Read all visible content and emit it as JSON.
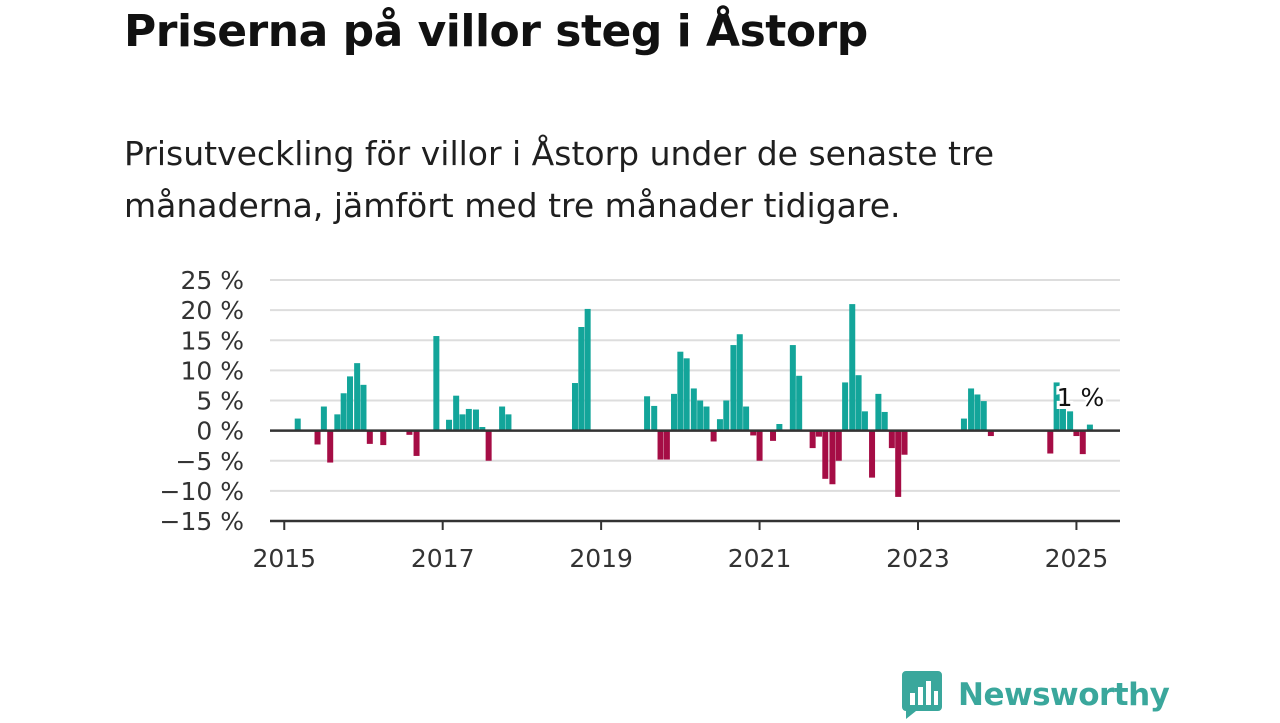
{
  "title": "Priserna på villor steg i Åstorp",
  "subtitle": "Prisutveckling för villor i Åstorp under de senaste tre månaderna, jämfört med tre månader tidigare.",
  "brand": {
    "name": "Newsworthy",
    "color": "#3aa79c",
    "icon": "speech-bubble-bar-chart-icon"
  },
  "colors": {
    "positive": "#13a59a",
    "negative": "#a50d45",
    "grid": "#dddddd",
    "axis": "#333333"
  },
  "chart_data": {
    "type": "bar",
    "title": "Priserna på villor steg i Åstorp",
    "xlabel": "",
    "ylabel": "",
    "unit": "%",
    "ylim": [
      -15,
      25
    ],
    "xlim": [
      2014.82,
      2025.55
    ],
    "grid": true,
    "legend": "none",
    "y_ticks": [
      25,
      20,
      15,
      10,
      5,
      0,
      -5,
      -10,
      -15
    ],
    "y_tick_labels": [
      "25 %",
      "20 %",
      "15 %",
      "10 %",
      "5 %",
      "0 %",
      "−5 %",
      "−10 %",
      "−15 %"
    ],
    "x_ticks": [
      2015,
      2017,
      2019,
      2021,
      2023,
      2025
    ],
    "x_tick_labels": [
      "2015",
      "2017",
      "2019",
      "2021",
      "2023",
      "2025"
    ],
    "value_label": {
      "text": "1 %",
      "x": 2025.0
    },
    "points": [
      {
        "x": 2015.17,
        "y": 2
      },
      {
        "x": 2015.42,
        "y": -2.3
      },
      {
        "x": 2015.5,
        "y": 4
      },
      {
        "x": 2015.58,
        "y": -5.3
      },
      {
        "x": 2015.67,
        "y": 2.7
      },
      {
        "x": 2015.75,
        "y": 6.2
      },
      {
        "x": 2015.83,
        "y": 9
      },
      {
        "x": 2015.92,
        "y": 11.2
      },
      {
        "x": 2016.0,
        "y": 7.6
      },
      {
        "x": 2016.08,
        "y": -2.2
      },
      {
        "x": 2016.25,
        "y": -2.4
      },
      {
        "x": 2016.58,
        "y": -0.7
      },
      {
        "x": 2016.67,
        "y": -4.2
      },
      {
        "x": 2016.92,
        "y": 15.7
      },
      {
        "x": 2017.08,
        "y": 1.8
      },
      {
        "x": 2017.17,
        "y": 5.8
      },
      {
        "x": 2017.25,
        "y": 2.7
      },
      {
        "x": 2017.33,
        "y": 3.6
      },
      {
        "x": 2017.42,
        "y": 3.5
      },
      {
        "x": 2017.5,
        "y": 0.6
      },
      {
        "x": 2017.58,
        "y": -5
      },
      {
        "x": 2017.75,
        "y": 4
      },
      {
        "x": 2017.83,
        "y": 2.7
      },
      {
        "x": 2018.67,
        "y": 7.9
      },
      {
        "x": 2018.75,
        "y": 17.2
      },
      {
        "x": 2018.83,
        "y": 20.2
      },
      {
        "x": 2019.58,
        "y": 5.7
      },
      {
        "x": 2019.67,
        "y": 4.1
      },
      {
        "x": 2019.75,
        "y": -4.8
      },
      {
        "x": 2019.83,
        "y": -4.8
      },
      {
        "x": 2019.92,
        "y": 6.1
      },
      {
        "x": 2020.0,
        "y": 13.1
      },
      {
        "x": 2020.08,
        "y": 12
      },
      {
        "x": 2020.17,
        "y": 7
      },
      {
        "x": 2020.25,
        "y": 5
      },
      {
        "x": 2020.33,
        "y": 4
      },
      {
        "x": 2020.42,
        "y": -1.8
      },
      {
        "x": 2020.5,
        "y": 1.9
      },
      {
        "x": 2020.58,
        "y": 5
      },
      {
        "x": 2020.67,
        "y": 14.2
      },
      {
        "x": 2020.75,
        "y": 16
      },
      {
        "x": 2020.83,
        "y": 4
      },
      {
        "x": 2020.92,
        "y": -0.8
      },
      {
        "x": 2021.0,
        "y": -5
      },
      {
        "x": 2021.17,
        "y": -1.7
      },
      {
        "x": 2021.25,
        "y": 1.1
      },
      {
        "x": 2021.42,
        "y": 14.2
      },
      {
        "x": 2021.5,
        "y": 9.1
      },
      {
        "x": 2021.67,
        "y": -2.9
      },
      {
        "x": 2021.75,
        "y": -1
      },
      {
        "x": 2021.83,
        "y": -8
      },
      {
        "x": 2021.92,
        "y": -8.9
      },
      {
        "x": 2022.0,
        "y": -5
      },
      {
        "x": 2022.08,
        "y": 8
      },
      {
        "x": 2022.17,
        "y": 21
      },
      {
        "x": 2022.25,
        "y": 9.2
      },
      {
        "x": 2022.33,
        "y": 3.2
      },
      {
        "x": 2022.42,
        "y": -7.8
      },
      {
        "x": 2022.5,
        "y": 6.1
      },
      {
        "x": 2022.58,
        "y": 3.1
      },
      {
        "x": 2022.67,
        "y": -2.9
      },
      {
        "x": 2022.75,
        "y": -11
      },
      {
        "x": 2022.83,
        "y": -4
      },
      {
        "x": 2023.58,
        "y": 2
      },
      {
        "x": 2023.67,
        "y": 7
      },
      {
        "x": 2023.75,
        "y": 6
      },
      {
        "x": 2023.83,
        "y": 4.9
      },
      {
        "x": 2023.92,
        "y": -0.9
      },
      {
        "x": 2024.67,
        "y": -3.8
      },
      {
        "x": 2024.75,
        "y": 8
      },
      {
        "x": 2024.83,
        "y": 4
      },
      {
        "x": 2024.92,
        "y": 3.2
      },
      {
        "x": 2025.0,
        "y": -0.9
      },
      {
        "x": 2025.08,
        "y": -3.9
      },
      {
        "x": 2025.17,
        "y": 1
      }
    ]
  }
}
